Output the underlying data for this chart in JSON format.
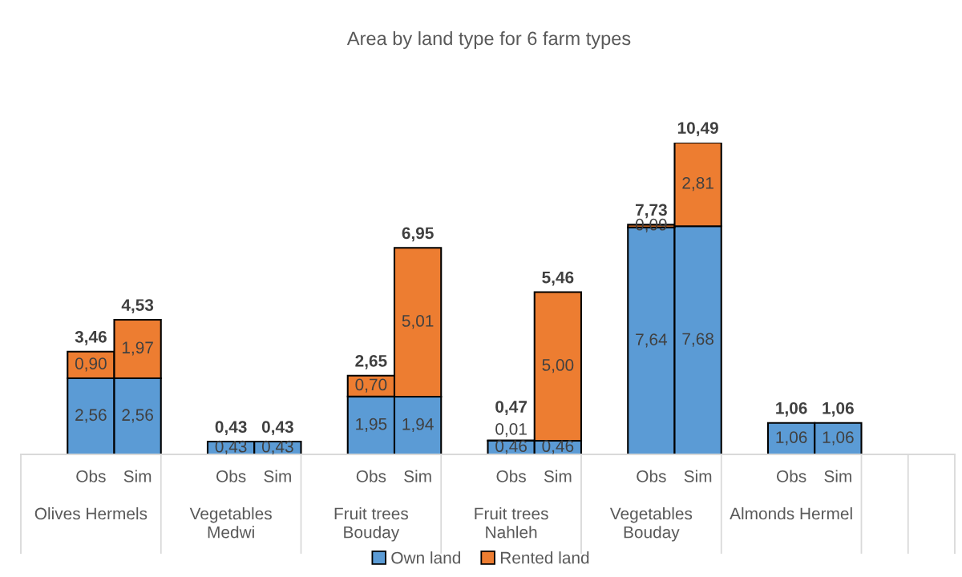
{
  "chart_data": {
    "type": "bar",
    "title": "Area by land type for 6 farm types",
    "categories": [
      null,
      "Obs",
      "Sim",
      null,
      "Obs",
      "Sim",
      null,
      "Obs",
      "Sim",
      null,
      "Obs",
      "Sim",
      null,
      "Obs",
      "Sim",
      null,
      "Obs",
      "Sim",
      null,
      null
    ],
    "series": [
      {
        "name": "Own land",
        "color": "#5b9bd5",
        "values": [
          null,
          2.56,
          2.56,
          null,
          0.43,
          0.43,
          null,
          1.95,
          1.94,
          null,
          0.46,
          0.46,
          null,
          7.64,
          7.68,
          null,
          1.06,
          1.06,
          null,
          null
        ],
        "value_labels": [
          null,
          "2,56",
          "2,56",
          null,
          "0,43",
          "0,43",
          null,
          "1,95",
          "1,94",
          null,
          "0,46",
          "0,46",
          null,
          "7,64",
          "7,68",
          null,
          "1,06",
          "1,06",
          null,
          null
        ]
      },
      {
        "name": "Rented land",
        "color": "#ed7d31",
        "values": [
          null,
          0.9,
          1.97,
          null,
          null,
          null,
          null,
          0.7,
          5.01,
          null,
          0.01,
          5.0,
          null,
          0.09,
          2.81,
          null,
          null,
          null,
          null,
          null
        ],
        "value_labels": [
          null,
          "0,90",
          "1,97",
          null,
          null,
          null,
          null,
          "0,70",
          "5,01",
          null,
          "0,01",
          "5,00",
          null,
          "0,09",
          "2,81",
          null,
          null,
          null,
          null,
          null
        ]
      }
    ],
    "stacked": true,
    "totals": [
      null,
      "3,46",
      "4,53",
      null,
      "0,43",
      "0,43",
      null,
      "2,65",
      "6,95",
      null,
      "0,47",
      "5,46",
      null,
      "7,73",
      "10,49",
      null,
      "1,06",
      "1,06",
      null,
      null
    ],
    "annotations": [
      "Olives Hermels",
      "Vegetables Medwi",
      "Fruit trees Bouday",
      "Fruit trees Nahleh",
      "Vegetables Bouday",
      "Almonds Hermel"
    ],
    "tick_labels": "x",
    "legend": "bottom"
  }
}
